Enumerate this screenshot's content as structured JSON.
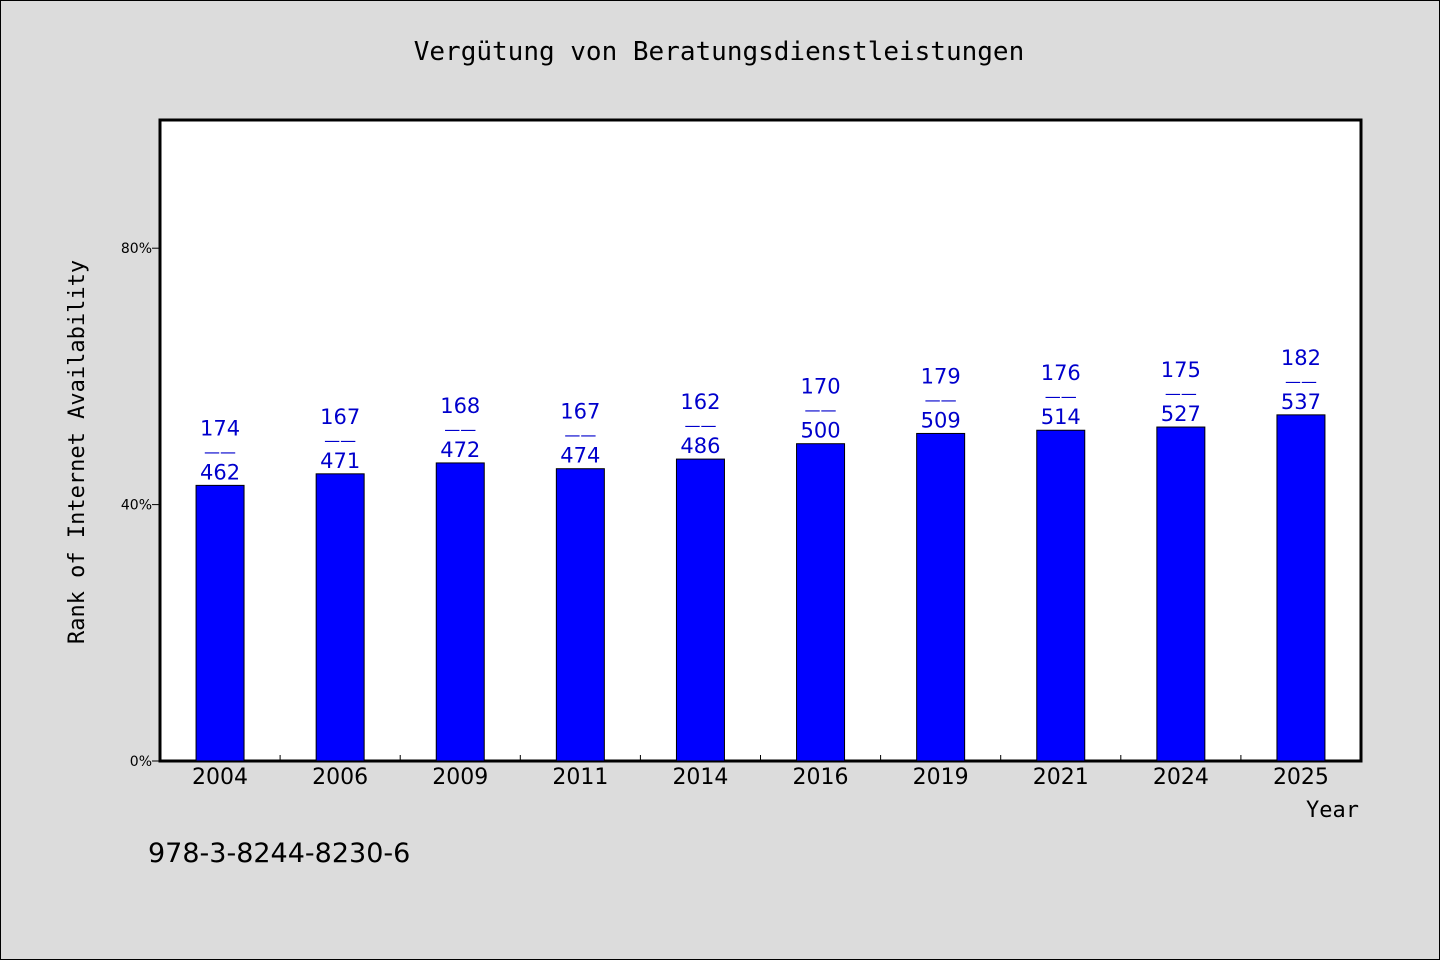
{
  "chart_data": {
    "type": "bar",
    "title": "Vergütung von Beratungsdienstleistungen",
    "xlabel": "Year",
    "ylabel": "Rank of Internet Availability",
    "categories": [
      "2004",
      "2006",
      "2009",
      "2011",
      "2014",
      "2016",
      "2019",
      "2021",
      "2024",
      "2025"
    ],
    "series": [
      {
        "values": [
          43,
          44.8,
          46.5,
          45.6,
          47.1,
          49.5,
          51.1,
          51.6,
          52.1,
          54
        ]
      }
    ],
    "data_labels_top": [
      "174",
      "167",
      "168",
      "167",
      "162",
      "170",
      "179",
      "176",
      "175",
      "182"
    ],
    "data_labels_bottom": [
      "462",
      "471",
      "472",
      "474",
      "486",
      "500",
      "509",
      "514",
      "527",
      "537"
    ],
    "label_separator": "——",
    "ylim": [
      0,
      100
    ],
    "yticks": [
      0,
      40,
      80
    ],
    "ytick_labels": [
      "0%",
      "40%",
      "80%"
    ],
    "grid": false,
    "legend": "none",
    "colors": {
      "bar": "#0000ff",
      "data_label": "#0000cc",
      "background": "#dcdcdc",
      "plot_background": "#ffffff"
    }
  },
  "footer": {
    "isbn": "978-3-8244-8230-6"
  }
}
